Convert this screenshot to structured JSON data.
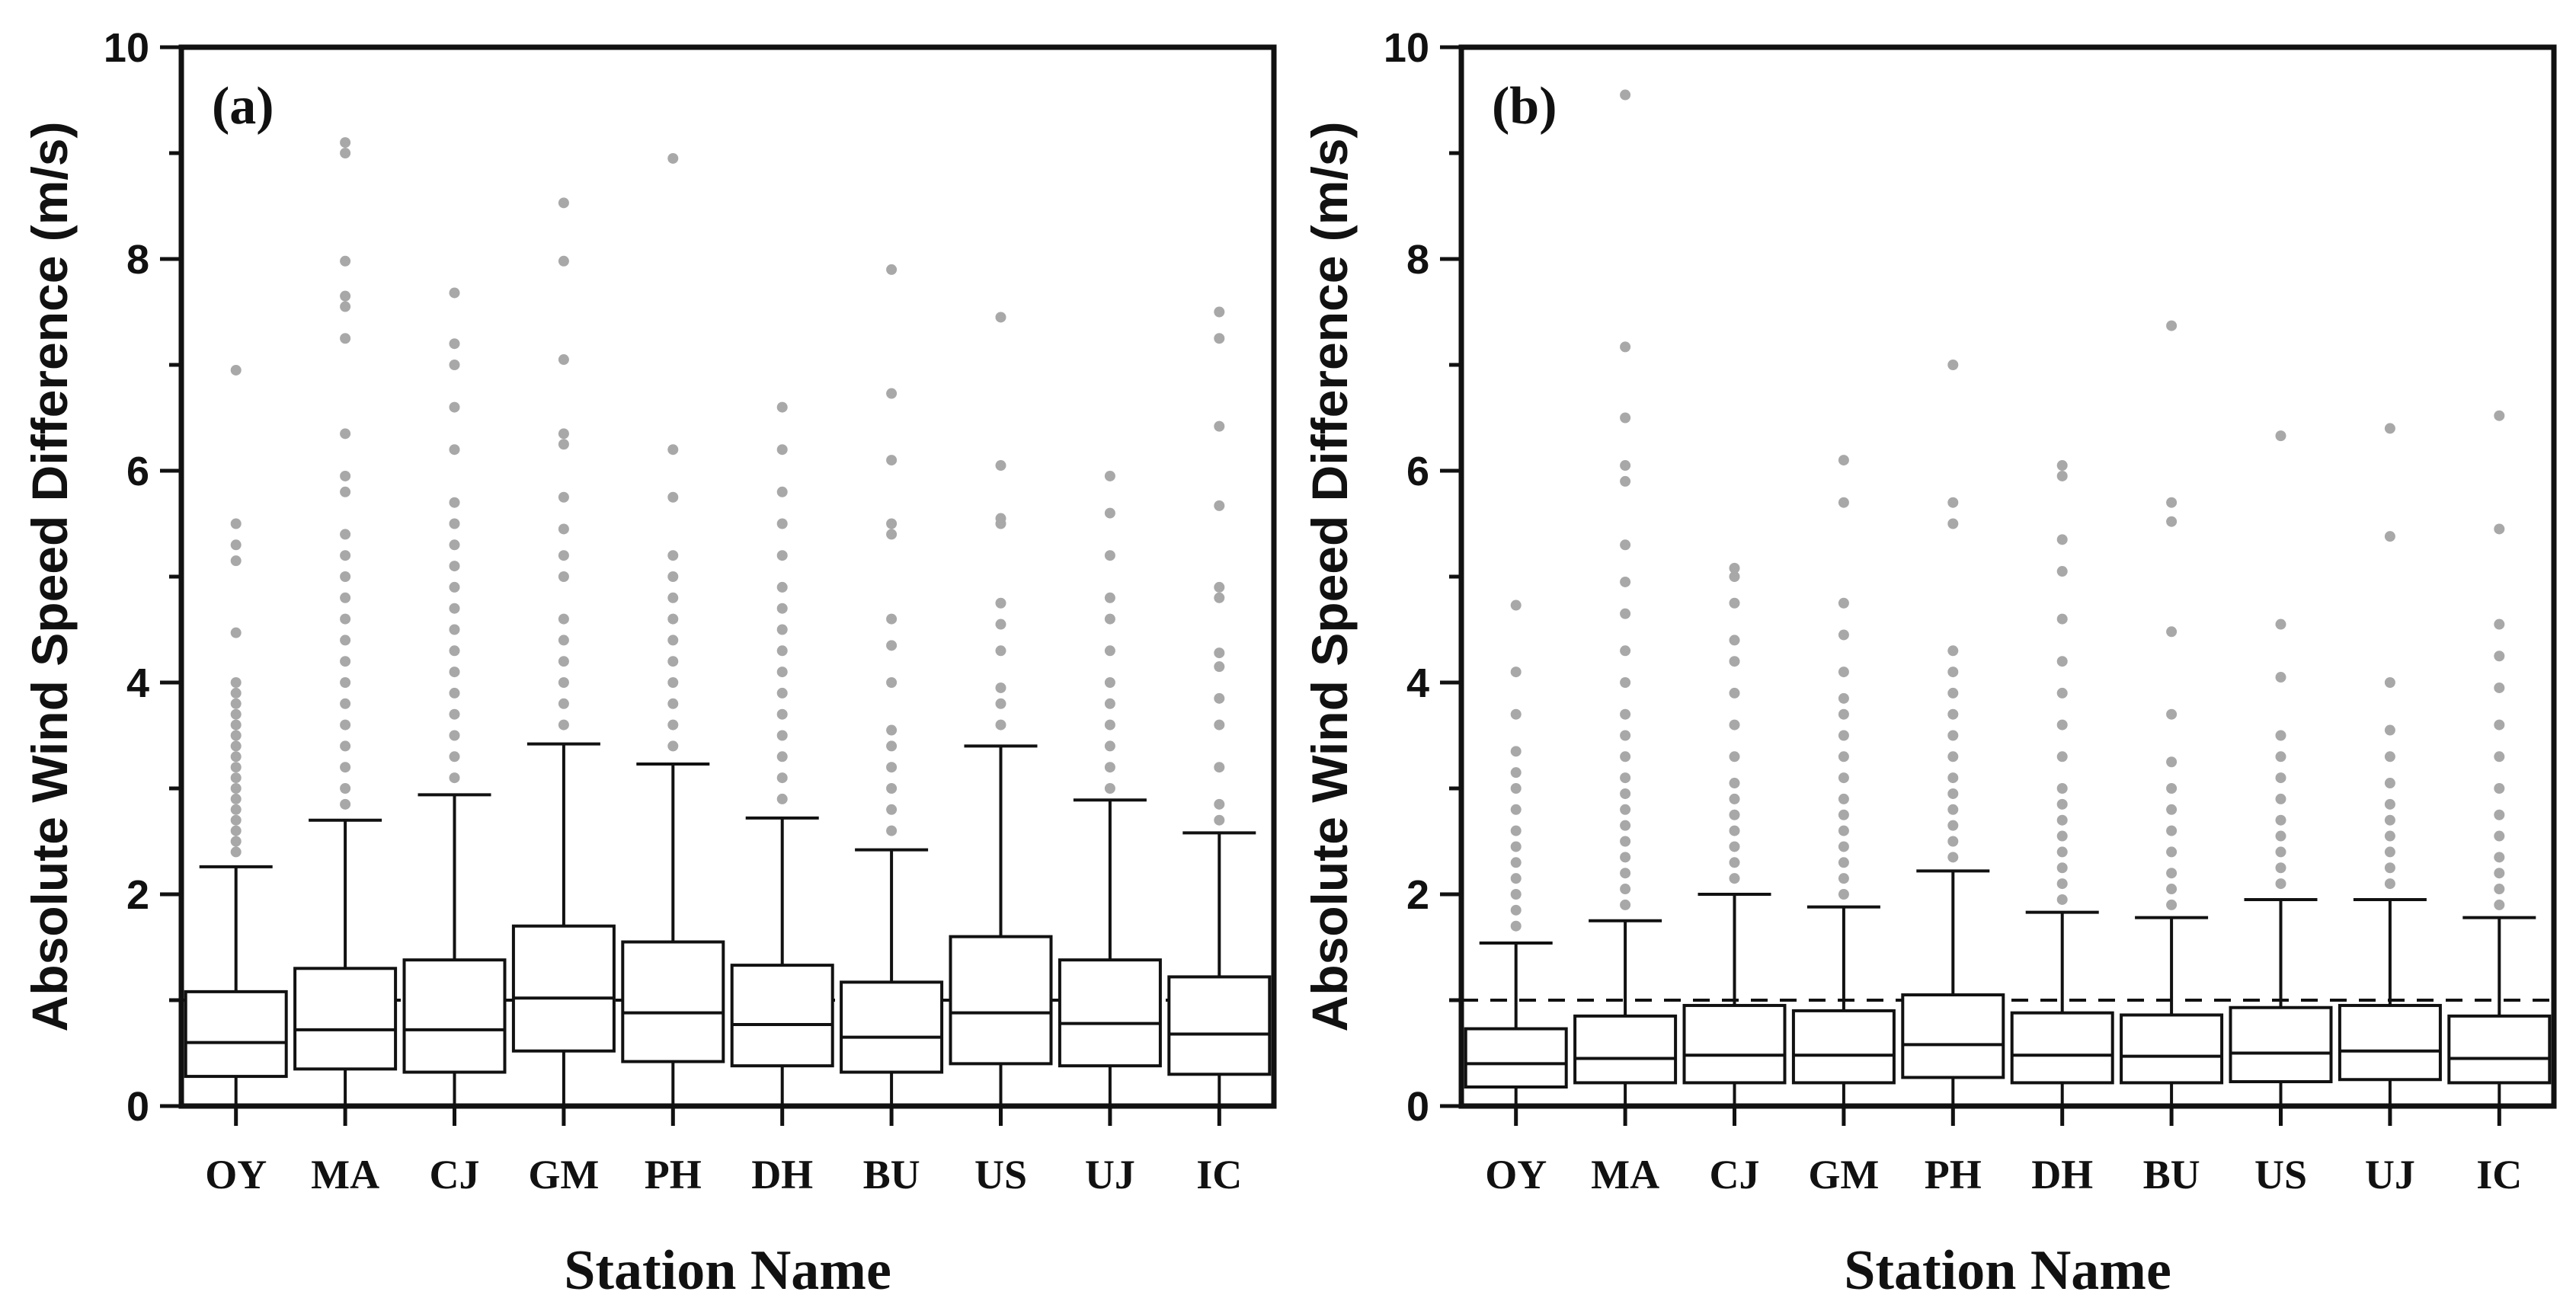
{
  "chart_data": [
    {
      "type": "box",
      "panel_label": "(a)",
      "xlabel": "Station Name",
      "ylabel": "Absolute Wind Speed Difference (m/s)",
      "ylim": [
        0,
        10
      ],
      "yticks": [
        "0",
        "2",
        "4",
        "6",
        "8",
        "10"
      ],
      "reference_line": 1.0,
      "categories": [
        "OY",
        "MA",
        "CJ",
        "GM",
        "PH",
        "DH",
        "BU",
        "US",
        "UJ",
        "IC"
      ],
      "boxes": [
        {
          "q1": 0.28,
          "median": 0.6,
          "q3": 1.08,
          "whisker_low": 0,
          "whisker_high": 2.26,
          "outliers": [
            2.4,
            2.5,
            2.6,
            2.7,
            2.8,
            2.9,
            3.0,
            3.1,
            3.2,
            3.3,
            3.4,
            3.5,
            3.6,
            3.7,
            3.8,
            3.9,
            4.0,
            4.47,
            5.15,
            5.3,
            5.5,
            6.95
          ]
        },
        {
          "q1": 0.35,
          "median": 0.72,
          "q3": 1.3,
          "whisker_low": 0,
          "whisker_high": 2.7,
          "outliers": [
            2.85,
            3.0,
            3.2,
            3.4,
            3.6,
            3.8,
            4.0,
            4.2,
            4.4,
            4.6,
            4.8,
            5.0,
            5.2,
            5.4,
            5.8,
            5.95,
            6.35,
            7.25,
            7.55,
            7.65,
            7.98,
            9.0,
            9.1
          ]
        },
        {
          "q1": 0.32,
          "median": 0.72,
          "q3": 1.38,
          "whisker_low": 0,
          "whisker_high": 2.94,
          "outliers": [
            3.1,
            3.3,
            3.5,
            3.7,
            3.9,
            4.1,
            4.3,
            4.5,
            4.7,
            4.9,
            5.1,
            5.3,
            5.5,
            5.7,
            6.2,
            6.6,
            7.0,
            7.2,
            7.68
          ]
        },
        {
          "q1": 0.52,
          "median": 1.02,
          "q3": 1.7,
          "whisker_low": 0,
          "whisker_high": 3.42,
          "outliers": [
            3.6,
            3.8,
            4.0,
            4.2,
            4.4,
            4.6,
            5.0,
            5.2,
            5.45,
            5.75,
            6.25,
            6.35,
            7.05,
            7.98,
            8.53
          ]
        },
        {
          "q1": 0.42,
          "median": 0.88,
          "q3": 1.55,
          "whisker_low": 0,
          "whisker_high": 3.23,
          "outliers": [
            3.4,
            3.6,
            3.8,
            4.0,
            4.2,
            4.4,
            4.6,
            4.8,
            5.0,
            5.2,
            5.75,
            6.2,
            8.95
          ]
        },
        {
          "q1": 0.38,
          "median": 0.77,
          "q3": 1.33,
          "whisker_low": 0,
          "whisker_high": 2.72,
          "outliers": [
            2.9,
            3.1,
            3.3,
            3.5,
            3.7,
            3.9,
            4.1,
            4.3,
            4.5,
            4.7,
            4.9,
            5.2,
            5.5,
            5.8,
            6.2,
            6.6
          ]
        },
        {
          "q1": 0.32,
          "median": 0.65,
          "q3": 1.17,
          "whisker_low": 0,
          "whisker_high": 2.42,
          "outliers": [
            2.6,
            2.8,
            3.0,
            3.2,
            3.4,
            3.55,
            4.0,
            4.35,
            4.6,
            5.4,
            5.5,
            6.1,
            6.73,
            7.9
          ]
        },
        {
          "q1": 0.4,
          "median": 0.88,
          "q3": 1.6,
          "whisker_low": 0,
          "whisker_high": 3.4,
          "outliers": [
            3.6,
            3.8,
            3.95,
            4.3,
            4.55,
            4.75,
            5.5,
            5.55,
            6.05,
            7.45
          ]
        },
        {
          "q1": 0.38,
          "median": 0.78,
          "q3": 1.38,
          "whisker_low": 0,
          "whisker_high": 2.89,
          "outliers": [
            3.0,
            3.2,
            3.4,
            3.6,
            3.8,
            4.0,
            4.3,
            4.6,
            4.8,
            5.2,
            5.6,
            5.95
          ]
        },
        {
          "q1": 0.3,
          "median": 0.68,
          "q3": 1.22,
          "whisker_low": 0,
          "whisker_high": 2.58,
          "outliers": [
            2.7,
            2.85,
            3.2,
            3.6,
            3.85,
            4.15,
            4.28,
            4.8,
            4.9,
            5.67,
            6.42,
            7.25,
            7.5
          ]
        }
      ]
    },
    {
      "type": "box",
      "panel_label": "(b)",
      "xlabel": "Station Name",
      "ylabel": "Absolute Wind Speed Difference (m/s)",
      "ylim": [
        0,
        10
      ],
      "yticks": [
        "0",
        "2",
        "4",
        "6",
        "8",
        "10"
      ],
      "reference_line": 1.0,
      "categories": [
        "OY",
        "MA",
        "CJ",
        "GM",
        "PH",
        "DH",
        "BU",
        "US",
        "UJ",
        "IC"
      ],
      "boxes": [
        {
          "q1": 0.18,
          "median": 0.4,
          "q3": 0.73,
          "whisker_low": 0,
          "whisker_high": 1.54,
          "outliers": [
            1.7,
            1.85,
            2.0,
            2.15,
            2.3,
            2.45,
            2.6,
            2.8,
            3.0,
            3.15,
            3.35,
            3.7,
            4.1,
            4.73
          ]
        },
        {
          "q1": 0.22,
          "median": 0.45,
          "q3": 0.85,
          "whisker_low": 0,
          "whisker_high": 1.75,
          "outliers": [
            1.9,
            2.05,
            2.2,
            2.35,
            2.5,
            2.65,
            2.8,
            2.95,
            3.1,
            3.3,
            3.5,
            3.7,
            4.0,
            4.3,
            4.65,
            4.95,
            5.3,
            5.9,
            6.05,
            6.5,
            7.17,
            9.55
          ]
        },
        {
          "q1": 0.22,
          "median": 0.48,
          "q3": 0.95,
          "whisker_low": 0,
          "whisker_high": 2.0,
          "outliers": [
            2.15,
            2.3,
            2.45,
            2.6,
            2.75,
            2.9,
            3.05,
            3.3,
            3.6,
            3.9,
            4.2,
            4.4,
            4.75,
            5.0,
            5.08
          ]
        },
        {
          "q1": 0.22,
          "median": 0.48,
          "q3": 0.9,
          "whisker_low": 0,
          "whisker_high": 1.88,
          "outliers": [
            2.0,
            2.15,
            2.3,
            2.45,
            2.6,
            2.75,
            2.9,
            3.1,
            3.3,
            3.5,
            3.7,
            3.85,
            4.1,
            4.45,
            4.75,
            5.7,
            6.1
          ]
        },
        {
          "q1": 0.27,
          "median": 0.58,
          "q3": 1.05,
          "whisker_low": 0,
          "whisker_high": 2.22,
          "outliers": [
            2.35,
            2.5,
            2.65,
            2.8,
            2.95,
            3.1,
            3.3,
            3.5,
            3.7,
            3.9,
            4.1,
            4.3,
            5.5,
            5.7,
            7.0
          ]
        },
        {
          "q1": 0.22,
          "median": 0.48,
          "q3": 0.88,
          "whisker_low": 0,
          "whisker_high": 1.83,
          "outliers": [
            1.95,
            2.1,
            2.25,
            2.4,
            2.55,
            2.7,
            2.85,
            3.0,
            3.3,
            3.6,
            3.9,
            4.2,
            4.6,
            5.05,
            5.35,
            5.95,
            6.05
          ]
        },
        {
          "q1": 0.22,
          "median": 0.47,
          "q3": 0.86,
          "whisker_low": 0,
          "whisker_high": 1.78,
          "outliers": [
            1.9,
            2.05,
            2.2,
            2.4,
            2.6,
            2.8,
            3.0,
            3.25,
            3.7,
            4.48,
            5.52,
            5.7,
            7.37
          ]
        },
        {
          "q1": 0.23,
          "median": 0.5,
          "q3": 0.93,
          "whisker_low": 0,
          "whisker_high": 1.95,
          "outliers": [
            2.1,
            2.25,
            2.4,
            2.55,
            2.7,
            2.9,
            3.1,
            3.3,
            3.5,
            4.05,
            4.55,
            6.33
          ]
        },
        {
          "q1": 0.25,
          "median": 0.52,
          "q3": 0.95,
          "whisker_low": 0,
          "whisker_high": 1.95,
          "outliers": [
            2.1,
            2.25,
            2.4,
            2.55,
            2.7,
            2.85,
            3.05,
            3.3,
            3.55,
            4.0,
            5.38,
            6.4
          ]
        },
        {
          "q1": 0.22,
          "median": 0.45,
          "q3": 0.85,
          "whisker_low": 0,
          "whisker_high": 1.78,
          "outliers": [
            1.9,
            2.05,
            2.2,
            2.35,
            2.55,
            2.75,
            3.0,
            3.3,
            3.6,
            3.95,
            4.25,
            4.55,
            5.45,
            6.52
          ]
        }
      ]
    }
  ]
}
